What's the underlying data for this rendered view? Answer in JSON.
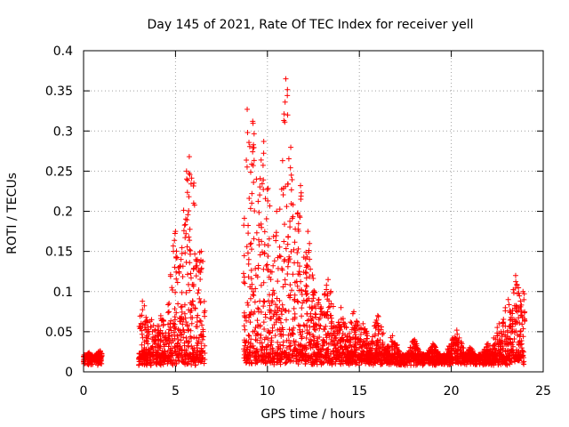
{
  "chart_data": {
    "type": "scatter",
    "title": "Day 145 of 2021, Rate Of TEC Index for receiver yell",
    "xlabel": "GPS time / hours",
    "ylabel": "ROTI / TECUs",
    "xlim": [
      0,
      25
    ],
    "ylim": [
      0,
      0.4
    ],
    "xticks": [
      "0",
      "5",
      "10",
      "15",
      "20",
      "25"
    ],
    "yticks": [
      "0",
      "0.05",
      "0.1",
      "0.15",
      "0.2",
      "0.25",
      "0.3",
      "0.35",
      "0.4"
    ],
    "grid": true,
    "marker": "+",
    "series": [
      {
        "name": "ROTI",
        "color": "#ff0000",
        "peaks": [
          {
            "x": 0.3,
            "y": 0.024
          },
          {
            "x": 0.9,
            "y": 0.026
          },
          {
            "x": 3.2,
            "y": 0.088
          },
          {
            "x": 3.7,
            "y": 0.065
          },
          {
            "x": 4.2,
            "y": 0.07
          },
          {
            "x": 4.8,
            "y": 0.105
          },
          {
            "x": 5.0,
            "y": 0.175
          },
          {
            "x": 5.3,
            "y": 0.14
          },
          {
            "x": 5.6,
            "y": 0.25
          },
          {
            "x": 5.75,
            "y": 0.268
          },
          {
            "x": 6.0,
            "y": 0.235
          },
          {
            "x": 6.4,
            "y": 0.15
          },
          {
            "x": 8.9,
            "y": 0.327
          },
          {
            "x": 9.2,
            "y": 0.312
          },
          {
            "x": 9.4,
            "y": 0.24
          },
          {
            "x": 9.8,
            "y": 0.287
          },
          {
            "x": 10.0,
            "y": 0.227
          },
          {
            "x": 10.5,
            "y": 0.2
          },
          {
            "x": 11.0,
            "y": 0.365
          },
          {
            "x": 11.1,
            "y": 0.32
          },
          {
            "x": 11.3,
            "y": 0.245
          },
          {
            "x": 11.8,
            "y": 0.232
          },
          {
            "x": 12.2,
            "y": 0.175
          },
          {
            "x": 12.8,
            "y": 0.09
          },
          {
            "x": 13.3,
            "y": 0.115
          },
          {
            "x": 14.0,
            "y": 0.08
          },
          {
            "x": 14.7,
            "y": 0.075
          },
          {
            "x": 15.2,
            "y": 0.06
          },
          {
            "x": 16.0,
            "y": 0.07
          },
          {
            "x": 16.8,
            "y": 0.045
          },
          {
            "x": 18.0,
            "y": 0.04
          },
          {
            "x": 19.0,
            "y": 0.035
          },
          {
            "x": 20.0,
            "y": 0.035
          },
          {
            "x": 20.3,
            "y": 0.052
          },
          {
            "x": 21.0,
            "y": 0.03
          },
          {
            "x": 22.0,
            "y": 0.035
          },
          {
            "x": 22.6,
            "y": 0.06
          },
          {
            "x": 23.1,
            "y": 0.09
          },
          {
            "x": 23.5,
            "y": 0.12
          },
          {
            "x": 23.9,
            "y": 0.1
          }
        ]
      }
    ]
  }
}
